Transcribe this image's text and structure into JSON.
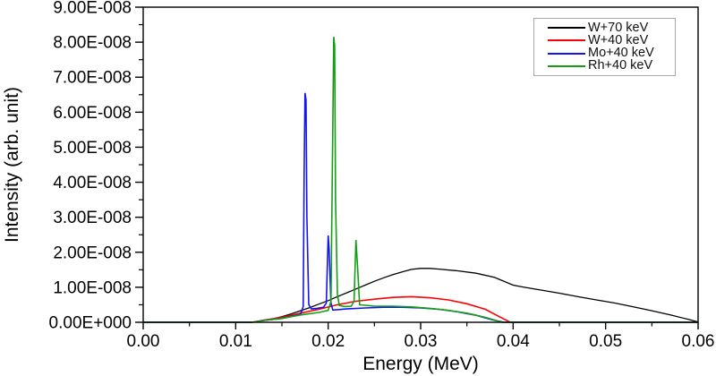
{
  "chart_data": {
    "type": "line",
    "title": "",
    "xlabel": "Energy (MeV)",
    "ylabel": "Intensity (arb. unit)",
    "xlim": [
      0,
      0.06
    ],
    "ylim": [
      0,
      9e-08
    ],
    "grid": false,
    "legend_position": "top-right",
    "axis_color": "#000000",
    "x_ticks": {
      "values": [
        0,
        0.01,
        0.02,
        0.03,
        0.04,
        0.05,
        0.06
      ],
      "labels": [
        "0.00",
        "0.01",
        "0.02",
        "0.03",
        "0.04",
        "0.05",
        "0.06"
      ]
    },
    "y_ticks": {
      "values": [
        0,
        1e-08,
        2e-08,
        3e-08,
        4e-08,
        5e-08,
        6e-08,
        7e-08,
        8e-08,
        9e-08
      ],
      "labels": [
        "0.00E+000",
        "1.00E-008",
        "2.00E-008",
        "3.00E-008",
        "4.00E-008",
        "5.00E-008",
        "6.00E-008",
        "7.00E-008",
        "8.00E-008",
        "9.00E-008"
      ]
    },
    "x_minor_step": 0.005,
    "y_minor_step": 5e-09,
    "series": [
      {
        "name": "W+70 keV",
        "color": "#000000",
        "width": 1.3,
        "points": [
          [
            0,
            0
          ],
          [
            0.0118,
            0
          ],
          [
            0.013,
            5e-10
          ],
          [
            0.014,
            1e-09
          ],
          [
            0.015,
            1.6e-09
          ],
          [
            0.016,
            2.4e-09
          ],
          [
            0.017,
            3.3e-09
          ],
          [
            0.018,
            4.2e-09
          ],
          [
            0.019,
            5.2e-09
          ],
          [
            0.02,
            6.2e-09
          ],
          [
            0.021,
            7.3e-09
          ],
          [
            0.022,
            8.4e-09
          ],
          [
            0.023,
            9.5e-09
          ],
          [
            0.024,
            1.06e-08
          ],
          [
            0.025,
            1.17e-08
          ],
          [
            0.026,
            1.27e-08
          ],
          [
            0.027,
            1.36e-08
          ],
          [
            0.028,
            1.44e-08
          ],
          [
            0.029,
            1.51e-08
          ],
          [
            0.03,
            1.54e-08
          ],
          [
            0.031,
            1.54e-08
          ],
          [
            0.032,
            1.52e-08
          ],
          [
            0.034,
            1.47e-08
          ],
          [
            0.036,
            1.4e-08
          ],
          [
            0.038,
            1.28e-08
          ],
          [
            0.04,
            1.06e-08
          ],
          [
            0.041,
            1.01e-08
          ],
          [
            0.043,
            9.2e-09
          ],
          [
            0.045,
            8.3e-09
          ],
          [
            0.047,
            7.3e-09
          ],
          [
            0.049,
            6.4e-09
          ],
          [
            0.051,
            5.5e-09
          ],
          [
            0.053,
            4.4e-09
          ],
          [
            0.055,
            3.3e-09
          ],
          [
            0.057,
            2.1e-09
          ],
          [
            0.059,
            8e-10
          ],
          [
            0.06,
            1e-10
          ]
        ]
      },
      {
        "name": "W+40 keV",
        "color": "#ff0000",
        "width": 1.6,
        "points": [
          [
            0,
            0
          ],
          [
            0.0118,
            0
          ],
          [
            0.013,
            6e-10
          ],
          [
            0.015,
            1.4e-09
          ],
          [
            0.017,
            2.6e-09
          ],
          [
            0.019,
            3.7e-09
          ],
          [
            0.021,
            5e-09
          ],
          [
            0.023,
            6e-09
          ],
          [
            0.025,
            6.6e-09
          ],
          [
            0.027,
            7.1e-09
          ],
          [
            0.029,
            7.3e-09
          ],
          [
            0.031,
            7e-09
          ],
          [
            0.033,
            6.4e-09
          ],
          [
            0.035,
            5.3e-09
          ],
          [
            0.037,
            3.7e-09
          ],
          [
            0.0385,
            1.6e-09
          ],
          [
            0.0397,
            0
          ],
          [
            0.06,
            0
          ]
        ]
      },
      {
        "name": "Mo+40 keV",
        "color": "#1414f0",
        "width": 1.6,
        "points": [
          [
            0,
            0
          ],
          [
            0.0118,
            0
          ],
          [
            0.013,
            5e-10
          ],
          [
            0.015,
            1.1e-09
          ],
          [
            0.016,
            1.7e-09
          ],
          [
            0.017,
            2.2e-09
          ],
          [
            0.0171,
            3e-09
          ],
          [
            0.0173,
            4.5e-09
          ],
          [
            0.0174,
            4.2e-08
          ],
          [
            0.0175,
            6.55e-08
          ],
          [
            0.0176,
            6.35e-08
          ],
          [
            0.0177,
            3e-08
          ],
          [
            0.0179,
            5e-09
          ],
          [
            0.0182,
            3.8e-09
          ],
          [
            0.0188,
            4e-09
          ],
          [
            0.0195,
            4.3e-09
          ],
          [
            0.0198,
            5.5e-09
          ],
          [
            0.02,
            2.48e-08
          ],
          [
            0.0201,
            2.1e-08
          ],
          [
            0.0203,
            5.5e-09
          ],
          [
            0.0205,
            3.5e-09
          ],
          [
            0.022,
            3.8e-09
          ],
          [
            0.024,
            4.1e-09
          ],
          [
            0.026,
            4.3e-09
          ],
          [
            0.028,
            4.3e-09
          ],
          [
            0.03,
            4.1e-09
          ],
          [
            0.032,
            3.7e-09
          ],
          [
            0.034,
            3e-09
          ],
          [
            0.036,
            2e-09
          ],
          [
            0.0378,
            7e-10
          ],
          [
            0.039,
            0
          ],
          [
            0.06,
            0
          ]
        ]
      },
      {
        "name": "Rh+40 keV",
        "color": "#149e14",
        "width": 1.6,
        "points": [
          [
            0,
            0
          ],
          [
            0.0118,
            0
          ],
          [
            0.013,
            5e-10
          ],
          [
            0.015,
            1.1e-09
          ],
          [
            0.017,
            2.1e-09
          ],
          [
            0.019,
            2.8e-09
          ],
          [
            0.02,
            3.4e-09
          ],
          [
            0.0203,
            6e-09
          ],
          [
            0.0205,
            5.5e-08
          ],
          [
            0.0206,
            8.15e-08
          ],
          [
            0.0207,
            7.9e-08
          ],
          [
            0.0208,
            3.5e-08
          ],
          [
            0.021,
            8e-09
          ],
          [
            0.0212,
            4.8e-09
          ],
          [
            0.0218,
            4.5e-09
          ],
          [
            0.0225,
            4.6e-09
          ],
          [
            0.0228,
            6e-09
          ],
          [
            0.023,
            2.35e-08
          ],
          [
            0.0232,
            1.5e-08
          ],
          [
            0.0234,
            5e-09
          ],
          [
            0.025,
            4.6e-09
          ],
          [
            0.027,
            4.6e-09
          ],
          [
            0.029,
            4.4e-09
          ],
          [
            0.031,
            4e-09
          ],
          [
            0.033,
            3.4e-09
          ],
          [
            0.035,
            2.6e-09
          ],
          [
            0.037,
            1.4e-09
          ],
          [
            0.0388,
            0
          ],
          [
            0.06,
            0
          ]
        ]
      }
    ]
  }
}
